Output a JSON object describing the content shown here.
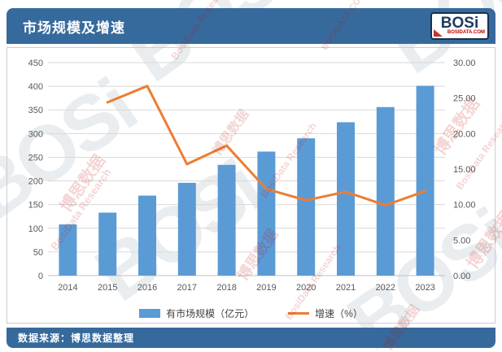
{
  "header": {
    "title": "市场规模及增速",
    "logo": {
      "text": "BOSi",
      "subtext": "BOSIDATA.COM"
    }
  },
  "footer": {
    "source": "数据来源：博思数据整理"
  },
  "watermarks": {
    "gray_logo": "BOSi",
    "red_texts": [
      "博思数据",
      "BosiData Research",
      "BOSIDATA.COM"
    ]
  },
  "colors": {
    "header_blue": "#376a9c",
    "bar_blue": "#5b9bd5",
    "line_orange": "#ed7d31",
    "gridline": "#d9d9d9",
    "axis_line": "#bfbfbf",
    "tick_text": "#595959"
  },
  "chart_data": {
    "type": "bar",
    "title": "市场规模及增速",
    "categories": [
      "2014",
      "2015",
      "2016",
      "2017",
      "2018",
      "2019",
      "2020",
      "2021",
      "2022",
      "2023"
    ],
    "series": [
      {
        "name": "有市场规模（亿元）",
        "type": "bar",
        "axis": "left",
        "color": "#5b9bd5",
        "values": [
          108,
          133,
          169,
          196,
          234,
          262,
          290,
          324,
          356,
          401
        ]
      },
      {
        "name": "增速（%）",
        "type": "line",
        "axis": "right",
        "color": "#ed7d31",
        "values": [
          null,
          24.4,
          26.7,
          15.7,
          18.3,
          12.2,
          10.6,
          11.8,
          9.9,
          11.9
        ]
      }
    ],
    "left_axis": {
      "min": 0,
      "max": 450,
      "step": 50,
      "decimals": 0
    },
    "right_axis": {
      "min": 0,
      "max": 30,
      "step": 5,
      "decimals": 2
    },
    "grid": true,
    "legend_position": "bottom"
  }
}
